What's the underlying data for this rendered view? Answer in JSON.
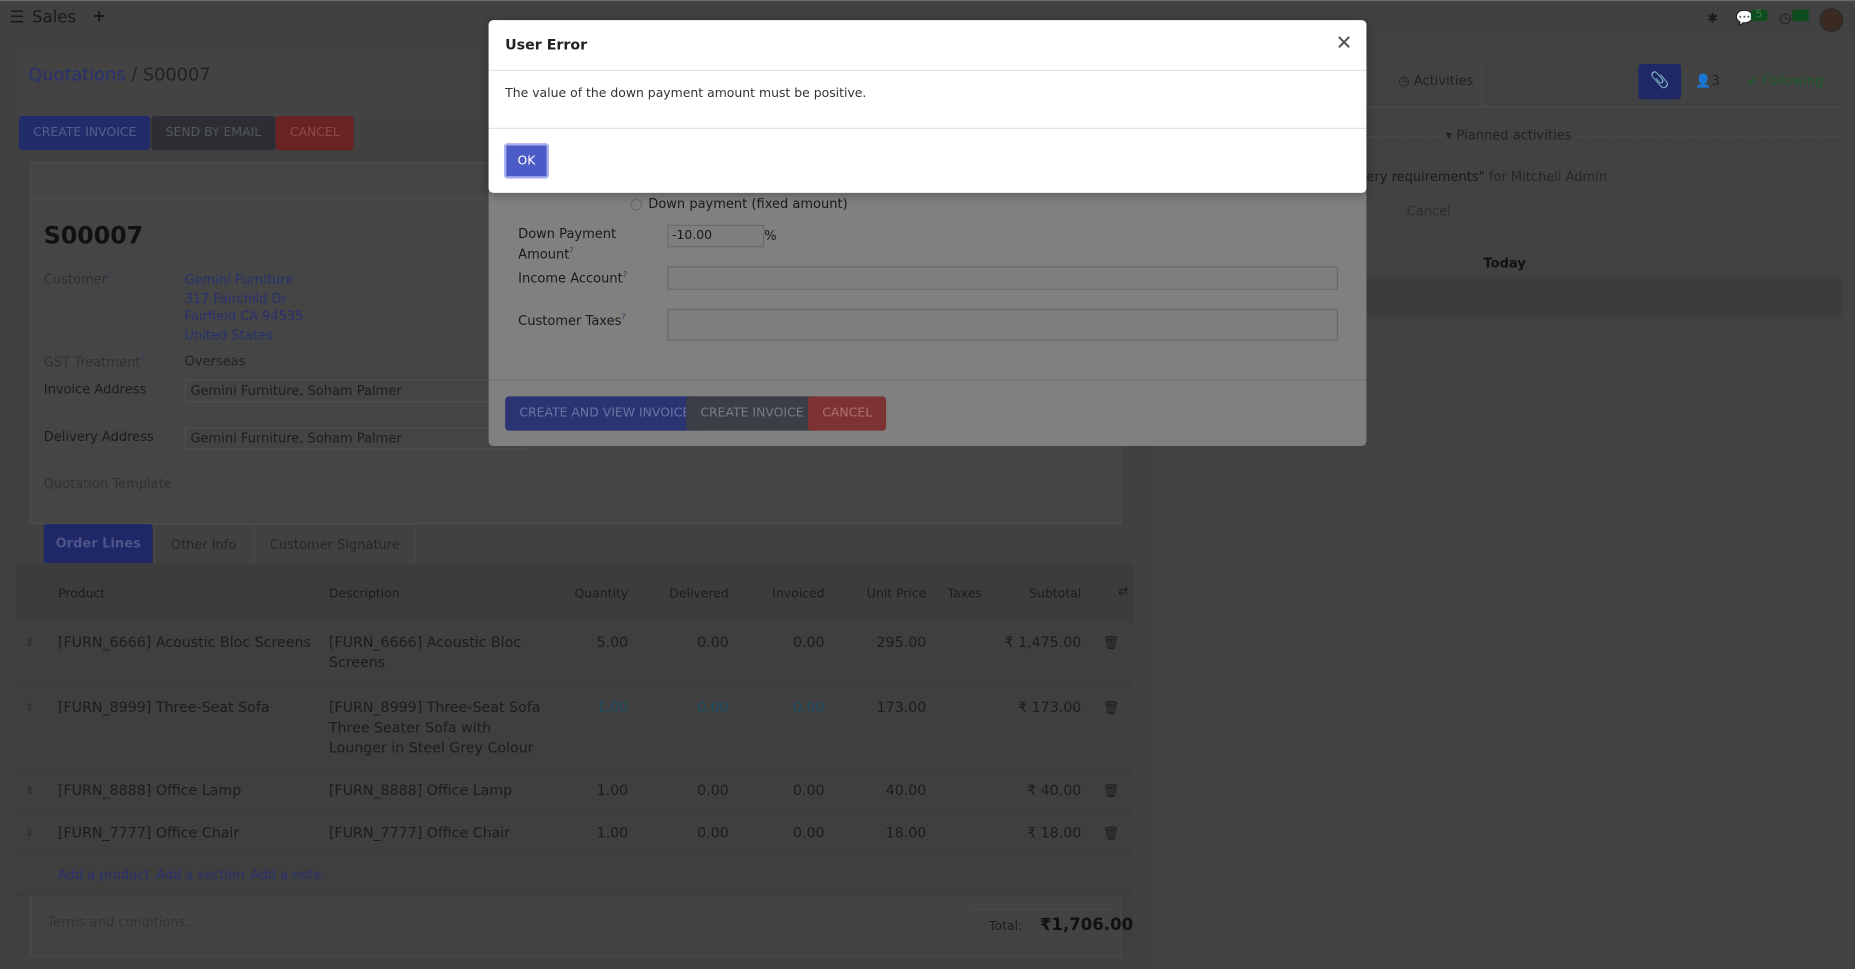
{
  "navbar": {
    "app_name": "Sales",
    "new_icon": "plus-icon",
    "menu_icon": "hamburger-icon",
    "messages_count": "5",
    "activities_count": "5"
  },
  "breadcrumb": {
    "parent": "Quotations",
    "current": "S00007"
  },
  "actions": {
    "create_invoice": "CREATE INVOICE",
    "send_by_email": "SEND BY EMAIL",
    "cancel": "CANCEL"
  },
  "form": {
    "title": "S00007",
    "customer_label": "Customer",
    "customer_name": "Gemini Furniture",
    "customer_address": [
      "317 Fairchild Dr",
      "Fairfield CA 94535",
      "United States"
    ],
    "gst_label": "GST Treatment",
    "gst_value": "Overseas",
    "invoice_address_label": "Invoice Address",
    "invoice_address": "Gemini Furniture, Soham Palmer",
    "delivery_address_label": "Delivery Address",
    "delivery_address": "Gemini Furniture, Soham Palmer",
    "template_label": "Quotation Template"
  },
  "tabs": [
    "Order Lines",
    "Other Info",
    "Customer Signature"
  ],
  "table": {
    "columns": [
      "Product",
      "Description",
      "Quantity",
      "Delivered",
      "Invoiced",
      "Unit Price",
      "Taxes",
      "Subtotal"
    ],
    "rows": [
      {
        "product": "[FURN_6666] Acoustic Bloc Screens",
        "description": [
          "[FURN_6666] Acoustic Bloc",
          "Screens"
        ],
        "quantity": "5.00",
        "delivered": "0.00",
        "invoiced": "0.00",
        "unit_price": "295.00",
        "taxes": "",
        "subtotal": "₹ 1,475.00",
        "highlight": false
      },
      {
        "product": "[FURN_8999] Three-Seat Sofa",
        "description": [
          "[FURN_8999] Three-Seat Sofa",
          "Three Seater Sofa with",
          "Lounger in Steel Grey Colour"
        ],
        "quantity": "1.00",
        "delivered": "0.00",
        "invoiced": "0.00",
        "unit_price": "173.00",
        "taxes": "",
        "subtotal": "₹ 173.00",
        "highlight": true
      },
      {
        "product": "[FURN_8888] Office Lamp",
        "description": [
          "[FURN_8888] Office Lamp"
        ],
        "quantity": "1.00",
        "delivered": "0.00",
        "invoiced": "0.00",
        "unit_price": "40.00",
        "taxes": "",
        "subtotal": "₹ 40.00",
        "highlight": false
      },
      {
        "product": "[FURN_7777] Office Chair",
        "description": [
          "[FURN_7777] Office Chair"
        ],
        "quantity": "1.00",
        "delivered": "0.00",
        "invoiced": "0.00",
        "unit_price": "18.00",
        "taxes": "",
        "subtotal": "₹ 18.00",
        "highlight": false
      }
    ],
    "add_product": "Add a product",
    "add_section": "Add a section",
    "add_note": "Add a note"
  },
  "footer": {
    "terms_placeholder": "Terms and conditions...",
    "total_label": "Total:",
    "total_value": "₹1,706.00"
  },
  "chatter": {
    "activities": "Activities",
    "followers_count": "3",
    "following": "Following",
    "planned": "Planned activities",
    "activity_text": "ery requirements\"",
    "activity_for": "for Mitchell Admin",
    "cancel": "Cancel",
    "today": "Today"
  },
  "wizard": {
    "radio_fixed": "Down payment (fixed amount)",
    "amount_label_1": "Down Payment",
    "amount_label_2": "Amount",
    "amount_value": "-10.00",
    "amount_unit": "%",
    "income_label": "Income Account",
    "taxes_label": "Customer Taxes",
    "create_view": "CREATE AND VIEW INVOICE",
    "create": "CREATE INVOICE",
    "cancel": "CANCEL"
  },
  "error_dialog": {
    "title": "User Error",
    "message": "The value of the down payment amount must be positive.",
    "ok": "OK"
  },
  "colors": {
    "primary": "#4c5bd4",
    "success": "#28a745",
    "danger": "#dc3545"
  }
}
